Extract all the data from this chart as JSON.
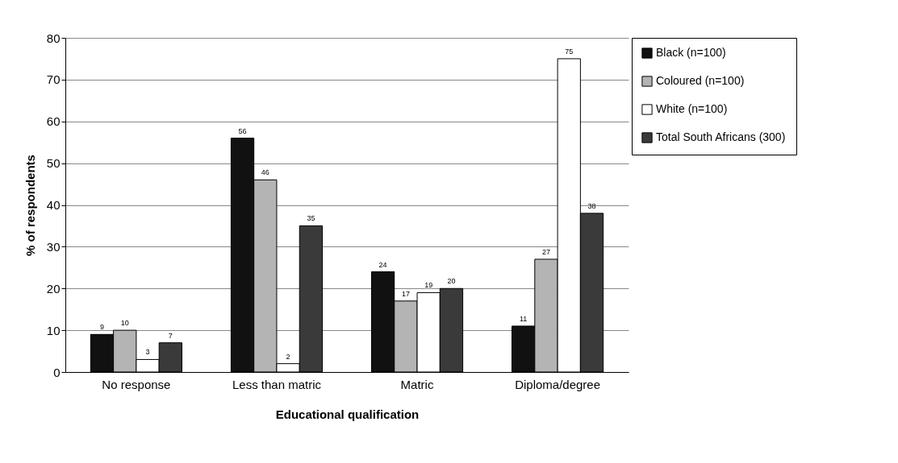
{
  "chart_data": {
    "type": "bar",
    "xlabel": "Educational qualification",
    "ylabel": "% of respondents",
    "categories": [
      "No response",
      "Less than matric",
      "Matric",
      "Diploma/degree"
    ],
    "series": [
      {
        "name": "Black (n=100)",
        "color": "#111111",
        "values": [
          9,
          56,
          24,
          11
        ]
      },
      {
        "name": "Coloured (n=100)",
        "color": "#b4b4b4",
        "values": [
          10,
          46,
          17,
          27
        ]
      },
      {
        "name": "White (n=100)",
        "color": "#ffffff",
        "values": [
          3,
          2,
          19,
          75
        ]
      },
      {
        "name": "Total South Africans (300)",
        "color": "#3a3a3a",
        "values": [
          7,
          35,
          20,
          38
        ]
      }
    ],
    "ylim": [
      0,
      80
    ],
    "yticks": [
      0,
      10,
      20,
      30,
      40,
      50,
      60,
      70,
      80
    ],
    "grid": "y",
    "legend": "right",
    "data_labels": true
  }
}
